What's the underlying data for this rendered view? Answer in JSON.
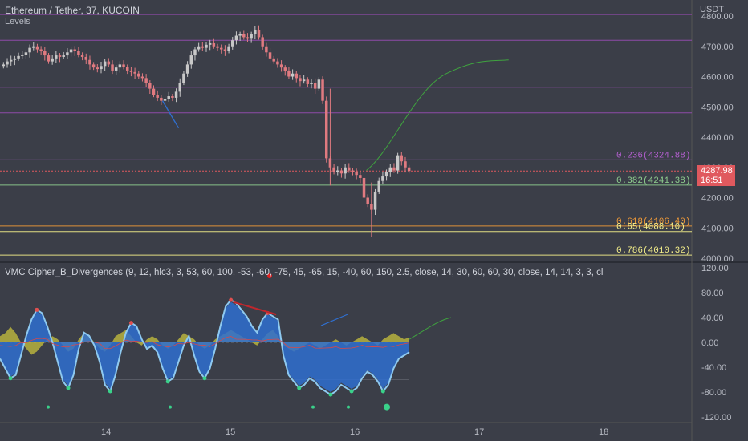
{
  "header": {
    "title": "Ethereum / Tether, 37, KUCOIN",
    "indicator": "Levels",
    "currency": "USDT"
  },
  "price_tag": {
    "price": "4287.98",
    "countdown": "16:51"
  },
  "oscillator": {
    "title": "VMC Cipher_B_Divergences (9, 12, hlc3, 3, 53, 60, 100, -53, -60, -75, 45, -65, 15, -40, 60, 150, 2.5, close, 14, 30, 60, 60, 30, close, 14, 14, 3, 3, cl"
  },
  "colors": {
    "background": "#3b3e48",
    "up": "#c8c8c8",
    "down": "#e07a80",
    "fib_purple": "#b35fcf",
    "fib_green": "#8fcf8f",
    "fib_orange": "#f29b38",
    "fib_yellow": "#f5f08a",
    "wave_blue": "#2f6fd0",
    "wave_light": "#8ec9f0",
    "money_yellow": "#c8c23c",
    "last_price": "#e0595e"
  },
  "chart_data": [
    {
      "type": "candlestick",
      "title": "Ethereum / Tether, 37, KUCOIN",
      "ylim": [
        4000,
        4800
      ],
      "y_ticks": [
        "4800.00",
        "4700.00",
        "4600.00",
        "4500.00",
        "4400.00",
        "4300.00",
        "4200.00",
        "4100.00",
        "4000.00"
      ],
      "x_ticks": [
        "14",
        "15",
        "16",
        "17",
        "18"
      ],
      "fib_levels": [
        {
          "label": "0.236(4324.88)",
          "value": 4324.88,
          "color": "#b35fcf"
        },
        {
          "label": "0.382(4241.38)",
          "value": 4241.38,
          "color": "#8fcf8f"
        },
        {
          "label": "0.618(4106.40)",
          "value": 4106.4,
          "color": "#f29b38"
        },
        {
          "label": "0.65(4088.10)",
          "value": 4088.1,
          "color": "#f5f08a"
        },
        {
          "label": "0.786(4010.32)",
          "value": 4010.32,
          "color": "#f5f08a"
        }
      ],
      "resistance_levels": [
        4805,
        4720,
        4565,
        4480
      ],
      "last_price": 4287.98,
      "close_series": [
        4640,
        4650,
        4655,
        4660,
        4668,
        4672,
        4680,
        4695,
        4700,
        4690,
        4685,
        4670,
        4650,
        4660,
        4670,
        4665,
        4670,
        4680,
        4690,
        4685,
        4672,
        4665,
        4655,
        4640,
        4630,
        4625,
        4635,
        4650,
        4640,
        4620,
        4630,
        4640,
        4632,
        4620,
        4615,
        4610,
        4600,
        4595,
        4580,
        4560,
        4540,
        4530,
        4520,
        4525,
        4535,
        4530,
        4550,
        4580,
        4610,
        4640,
        4670,
        4690,
        4700,
        4695,
        4705,
        4710,
        4700,
        4695,
        4690,
        4685,
        4700,
        4720,
        4735,
        4740,
        4730,
        4725,
        4740,
        4755,
        4730,
        4700,
        4680,
        4660,
        4650,
        4640,
        4630,
        4620,
        4600,
        4610,
        4595,
        4585,
        4590,
        4575,
        4580,
        4560,
        4590,
        4520,
        4330,
        4300,
        4285,
        4290,
        4280,
        4300,
        4290,
        4285,
        4275,
        4265,
        4200,
        4180,
        4160,
        4220,
        4255,
        4270,
        4285,
        4300,
        4290,
        4340,
        4320,
        4300,
        4288
      ],
      "projection": [
        {
          "x": 15.5,
          "y": 4515
        },
        {
          "x": 15.95,
          "y": 4290
        },
        {
          "x": 16.3,
          "y": 4390
        },
        {
          "x": 16.6,
          "y": 4590
        },
        {
          "x": 17.0,
          "y": 4640
        },
        {
          "x": 17.25,
          "y": 4655
        }
      ]
    },
    {
      "type": "area",
      "title": "VMC Cipher_B_Divergences",
      "ylim": [
        -120,
        120
      ],
      "y_ticks": [
        "120.00",
        "80.00",
        "40.00",
        "0.00",
        "-40.00",
        "-80.00",
        "-120.00"
      ],
      "wave_series": [
        -25,
        -40,
        -55,
        -50,
        -20,
        10,
        35,
        50,
        45,
        25,
        0,
        -30,
        -60,
        -70,
        -50,
        -10,
        15,
        10,
        -5,
        -30,
        -65,
        -75,
        -50,
        -15,
        15,
        30,
        25,
        5,
        -10,
        -5,
        -15,
        -40,
        -60,
        -55,
        -30,
        -5,
        10,
        -20,
        -45,
        -55,
        -40,
        -10,
        25,
        55,
        65,
        60,
        50,
        40,
        25,
        15,
        35,
        45,
        40,
        35,
        -20,
        -50,
        -60,
        -70,
        -65,
        -55,
        -60,
        -70,
        -75,
        -80,
        -75,
        -65,
        -70,
        -75,
        -70,
        -55,
        -45,
        -50,
        -60,
        -75,
        -65,
        -40,
        -25,
        -20,
        -15
      ],
      "money_flow": [
        10,
        15,
        25,
        15,
        0,
        -10,
        -20,
        -15,
        -5,
        5,
        10,
        5,
        -5,
        -15,
        -10,
        5,
        15,
        10,
        0,
        -10,
        -15,
        -5,
        10,
        15,
        20,
        10,
        0,
        -5,
        5,
        10,
        5,
        -5,
        -10,
        -5,
        5,
        15,
        10,
        5,
        -5,
        -10,
        -5,
        5,
        10,
        15,
        20,
        15,
        10,
        5,
        0,
        -5,
        5,
        15,
        20,
        10,
        -5,
        -10,
        -15,
        -10,
        -5,
        0,
        -5,
        -10,
        -5,
        0,
        5,
        0,
        -5,
        0,
        5,
        10,
        5,
        0,
        -5,
        5,
        10,
        15,
        10,
        5,
        8
      ],
      "divergence_line": [
        {
          "x": 15.1,
          "y": 60
        },
        {
          "x": 15.35,
          "y": 45
        }
      ]
    }
  ]
}
